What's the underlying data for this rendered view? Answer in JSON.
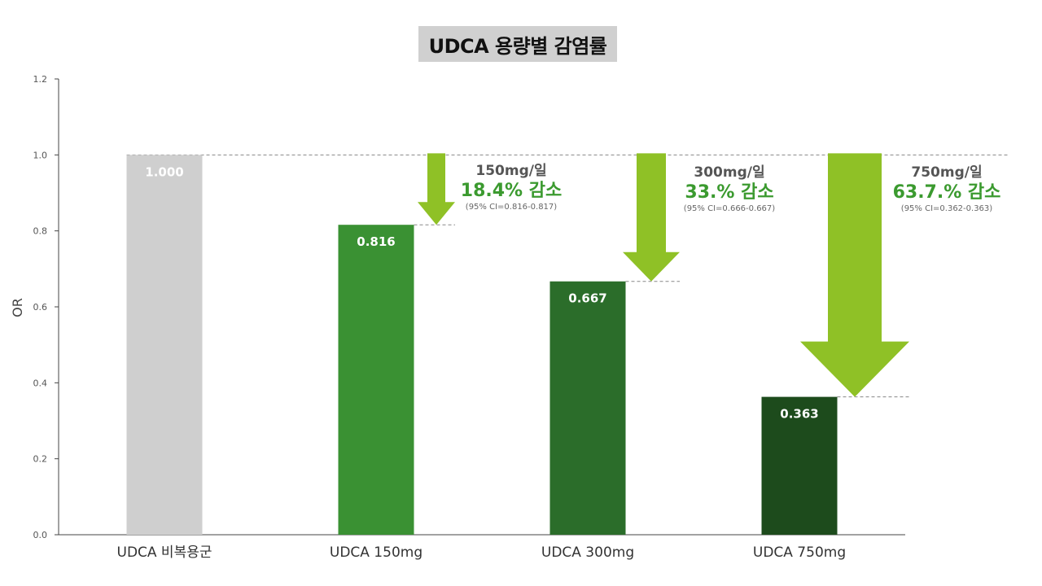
{
  "title": "UDCA 용량별 감염률",
  "colors": {
    "control": "#cfcfcf",
    "d150": "#3a9133",
    "d300": "#2b6d2a",
    "d750": "#1d4b1c",
    "arrow": "#8fc126",
    "annotation_reduction": "#3b9a2f",
    "reference_line": "#888888"
  },
  "chart_data": {
    "type": "bar",
    "title": "UDCA 용량별 감염률",
    "xlabel": "",
    "ylabel": "OR",
    "ylim": [
      0,
      1.2
    ],
    "yticks": [
      "0.0",
      "0.2",
      "0.4",
      "0.6",
      "0.8",
      "1.0",
      "1.2"
    ],
    "categories": [
      "UDCA 비복용군",
      "UDCA 150mg",
      "UDCA 300mg",
      "UDCA 750mg"
    ],
    "values": [
      1.0,
      0.816,
      0.667,
      0.363
    ],
    "value_labels": [
      "1.000",
      "0.816",
      "0.667",
      "0.363"
    ],
    "reference_line": 1.0,
    "grid": false
  },
  "annotations": [
    {
      "dose": "150mg/일",
      "reduction": "18.4% 감소",
      "ci": "(95% CI=0.816-0.817)"
    },
    {
      "dose": "300mg/일",
      "reduction": "33.% 감소",
      "ci": "(95% CI=0.666-0.667)"
    },
    {
      "dose": "750mg/일",
      "reduction": "63.7.% 감소",
      "ci": "(95% CI=0.362-0.363)"
    }
  ]
}
